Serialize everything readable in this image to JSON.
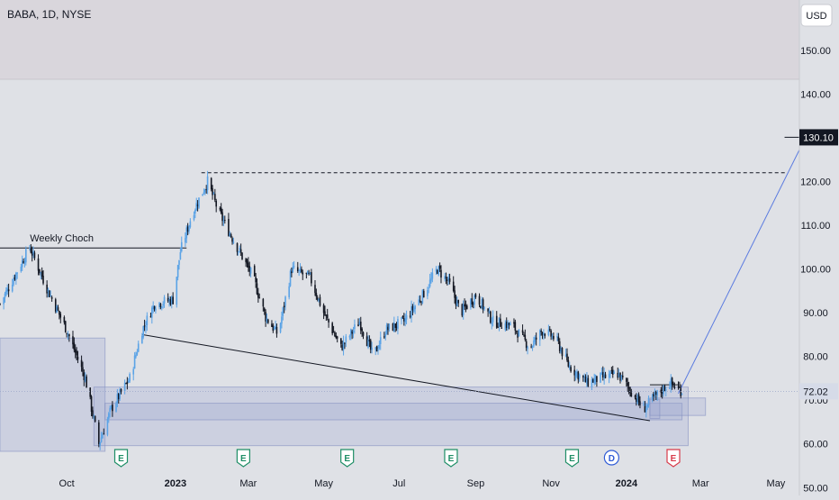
{
  "header": {
    "symbol_label": "BABA, 1D, NYSE"
  },
  "currency_button": "USD",
  "colors": {
    "background": "#dfe1e6",
    "top_band": "#d9d6dc",
    "up_candle": "#5ba3e6",
    "down_candle": "#131722",
    "zone_fill": "#9aa7d2",
    "projection_line": "#5b7be0",
    "price_label_bg": "#131722",
    "current_price_bg": "#d6dbe8",
    "earnings_badge": "#1e8e66",
    "dividend_badge": "#2f5bd6",
    "earnings_upcoming_badge": "#d83a4a"
  },
  "chart_data": {
    "type": "candlestick",
    "title": "BABA, 1D, NYSE",
    "y_axis": {
      "ticks": [
        "50.00",
        "60.00",
        "70.00",
        "80.00",
        "90.00",
        "100.00",
        "110.00",
        "120.00",
        "130.00",
        "140.00",
        "150.00"
      ],
      "tick_values": [
        50,
        60,
        70,
        80,
        90,
        100,
        110,
        120,
        130,
        140,
        150
      ],
      "range": [
        48.2,
        161.5
      ]
    },
    "x_axis": {
      "ticks": [
        "Oct",
        "2023",
        "Mar",
        "May",
        "Jul",
        "Sep",
        "Nov",
        "2024",
        "Mar",
        "May"
      ],
      "bold_ticks": [
        "2023",
        "2024"
      ],
      "range": [
        "2022-08-12",
        "2024-05-20"
      ]
    },
    "price_anchors": [
      [
        "2022-08-12",
        92
      ],
      [
        "2022-08-25",
        99
      ],
      [
        "2022-09-05",
        105
      ],
      [
        "2022-09-20",
        95
      ],
      [
        "2022-10-05",
        86
      ],
      [
        "2022-10-20",
        75
      ],
      [
        "2022-10-31",
        60
      ],
      [
        "2022-11-10",
        68
      ],
      [
        "2022-11-25",
        75
      ],
      [
        "2022-12-05",
        86
      ],
      [
        "2022-12-15",
        92
      ],
      [
        "2022-12-30",
        93
      ],
      [
        "2023-01-05",
        104
      ],
      [
        "2023-01-15",
        113
      ],
      [
        "2023-01-27",
        120
      ],
      [
        "2023-02-05",
        113
      ],
      [
        "2023-02-20",
        105
      ],
      [
        "2023-03-05",
        98
      ],
      [
        "2023-03-15",
        89
      ],
      [
        "2023-03-25",
        85
      ],
      [
        "2023-04-05",
        100
      ],
      [
        "2023-04-20",
        98
      ],
      [
        "2023-05-01",
        90
      ],
      [
        "2023-05-15",
        82
      ],
      [
        "2023-05-30",
        88
      ],
      [
        "2023-06-10",
        80
      ],
      [
        "2023-06-20",
        86
      ],
      [
        "2023-07-05",
        88
      ],
      [
        "2023-07-20",
        94
      ],
      [
        "2023-08-01",
        100
      ],
      [
        "2023-08-10",
        97
      ],
      [
        "2023-08-20",
        90
      ],
      [
        "2023-09-01",
        94
      ],
      [
        "2023-09-15",
        88
      ],
      [
        "2023-10-01",
        87
      ],
      [
        "2023-10-15",
        82
      ],
      [
        "2023-10-25",
        86
      ],
      [
        "2023-11-05",
        84
      ],
      [
        "2023-11-15",
        78
      ],
      [
        "2023-11-30",
        74
      ],
      [
        "2023-12-10",
        75
      ],
      [
        "2023-12-25",
        76
      ],
      [
        "2024-01-05",
        72
      ],
      [
        "2024-01-15",
        68
      ],
      [
        "2024-01-25",
        71
      ],
      [
        "2024-02-05",
        74
      ],
      [
        "2024-02-15",
        72.02
      ]
    ],
    "current_price": "72.02",
    "target_price_label": "130.10",
    "target_price": 130.1,
    "drawings": [
      {
        "type": "horizontal_line",
        "label": "Weekly Choch",
        "price": 104.8,
        "from": "2022-08-12",
        "to": "2023-01-10"
      },
      {
        "type": "dashed_line",
        "price": 122.0,
        "from": "2023-01-22",
        "to": "2024-05-10"
      },
      {
        "type": "trend_line",
        "from": [
          "2022-12-05",
          85
        ],
        "to": [
          "2024-01-20",
          65.3
        ]
      },
      {
        "type": "projection_line",
        "from": [
          "2024-02-12",
          71.5
        ],
        "to": [
          "2024-05-25",
          130.1
        ]
      },
      {
        "type": "horizontal_line",
        "price": 130.1,
        "from": "2024-05-08",
        "to": "2024-05-31"
      },
      {
        "type": "horizontal_line",
        "price": 73.5,
        "from": "2024-01-20",
        "to": "2024-02-12"
      }
    ],
    "zones": [
      {
        "from": "2022-08-12",
        "to": "2022-11-05",
        "low": 58.3,
        "high": 84.2
      },
      {
        "from": "2022-10-27",
        "to": "2024-02-20",
        "low": 59.6,
        "high": 73.0
      },
      {
        "from": "2022-11-05",
        "to": "2024-02-15",
        "low": 65.5,
        "high": 69.3
      },
      {
        "from": "2024-01-20",
        "to": "2024-03-05",
        "low": 66.5,
        "high": 70.5
      },
      {
        "from": "2024-01-20",
        "to": "2024-01-28",
        "low": 65.8,
        "high": 70.2
      }
    ],
    "events": [
      {
        "label": "E",
        "kind": "earnings",
        "date": "2022-11-18"
      },
      {
        "label": "E",
        "kind": "earnings",
        "date": "2023-02-25"
      },
      {
        "label": "E",
        "kind": "earnings",
        "date": "2023-05-20"
      },
      {
        "label": "E",
        "kind": "earnings",
        "date": "2023-08-12"
      },
      {
        "label": "E",
        "kind": "earnings",
        "date": "2023-11-18"
      },
      {
        "label": "D",
        "kind": "dividend",
        "date": "2023-12-20"
      },
      {
        "label": "E",
        "kind": "earnings_upcoming",
        "date": "2024-02-08"
      }
    ],
    "grid": false,
    "legend": "none"
  }
}
